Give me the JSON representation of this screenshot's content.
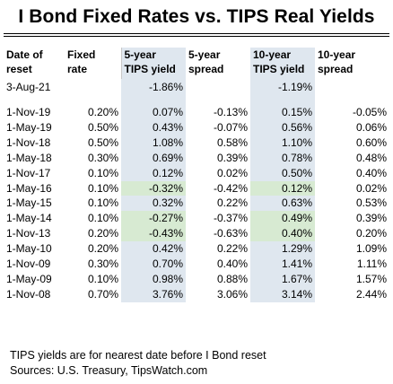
{
  "title": "I Bond Fixed Rates vs. TIPS Real Yields",
  "headers": [
    [
      "Date of",
      "reset"
    ],
    [
      "Fixed",
      "rate"
    ],
    [
      "5-year",
      "TIPS yield"
    ],
    [
      "5-year",
      "spread"
    ],
    [
      "10-year",
      "TIPS yield"
    ],
    [
      "10-year",
      "spread"
    ]
  ],
  "reference": {
    "date": "3-Aug-21",
    "tips5": "-1.86%",
    "tips10": "-1.19%"
  },
  "rows": [
    {
      "date": "1-Nov-19",
      "fixed": "0.20%",
      "tips5": "0.07%",
      "spread5": "-0.13%",
      "tips10": "0.15%",
      "spread10": "-0.05%",
      "hl5": false,
      "hl10": false
    },
    {
      "date": "1-May-19",
      "fixed": "0.50%",
      "tips5": "0.43%",
      "spread5": "-0.07%",
      "tips10": "0.56%",
      "spread10": "0.06%",
      "hl5": false,
      "hl10": false
    },
    {
      "date": "1-Nov-18",
      "fixed": "0.50%",
      "tips5": "1.08%",
      "spread5": "0.58%",
      "tips10": "1.10%",
      "spread10": "0.60%",
      "hl5": false,
      "hl10": false
    },
    {
      "date": "1-May-18",
      "fixed": "0.30%",
      "tips5": "0.69%",
      "spread5": "0.39%",
      "tips10": "0.78%",
      "spread10": "0.48%",
      "hl5": false,
      "hl10": false
    },
    {
      "date": "1-Nov-17",
      "fixed": "0.10%",
      "tips5": "0.12%",
      "spread5": "0.02%",
      "tips10": "0.50%",
      "spread10": "0.40%",
      "hl5": false,
      "hl10": false
    },
    {
      "date": "1-May-16",
      "fixed": "0.10%",
      "tips5": "-0.32%",
      "spread5": "-0.42%",
      "tips10": "0.12%",
      "spread10": "0.02%",
      "hl5": true,
      "hl10": true
    },
    {
      "date": "1-May-15",
      "fixed": "0.10%",
      "tips5": "0.32%",
      "spread5": "0.22%",
      "tips10": "0.63%",
      "spread10": "0.53%",
      "hl5": false,
      "hl10": false
    },
    {
      "date": "1-May-14",
      "fixed": "0.10%",
      "tips5": "-0.27%",
      "spread5": "-0.37%",
      "tips10": "0.49%",
      "spread10": "0.39%",
      "hl5": true,
      "hl10": true
    },
    {
      "date": "1-Nov-13",
      "fixed": "0.20%",
      "tips5": "-0.43%",
      "spread5": "-0.63%",
      "tips10": "0.40%",
      "spread10": "0.20%",
      "hl5": true,
      "hl10": true
    },
    {
      "date": "1-May-10",
      "fixed": "0.20%",
      "tips5": "0.42%",
      "spread5": "0.22%",
      "tips10": "1.29%",
      "spread10": "1.09%",
      "hl5": false,
      "hl10": false
    },
    {
      "date": "1-Nov-09",
      "fixed": "0.30%",
      "tips5": "0.70%",
      "spread5": "0.40%",
      "tips10": "1.41%",
      "spread10": "1.11%",
      "hl5": false,
      "hl10": false
    },
    {
      "date": "1-May-09",
      "fixed": "0.10%",
      "tips5": "0.98%",
      "spread5": "0.88%",
      "tips10": "1.67%",
      "spread10": "1.57%",
      "hl5": false,
      "hl10": false
    },
    {
      "date": "1-Nov-08",
      "fixed": "0.70%",
      "tips5": "3.76%",
      "spread5": "3.06%",
      "tips10": "3.14%",
      "spread10": "2.44%",
      "hl5": false,
      "hl10": false
    }
  ],
  "footnotes": [
    "TIPS yields are for nearest date before I Bond reset",
    "Sources: U.S. Treasury, TipsWatch.com"
  ],
  "colors": {
    "column_shade": "#dfe7ef",
    "negative_highlight": "#d7ead2"
  }
}
